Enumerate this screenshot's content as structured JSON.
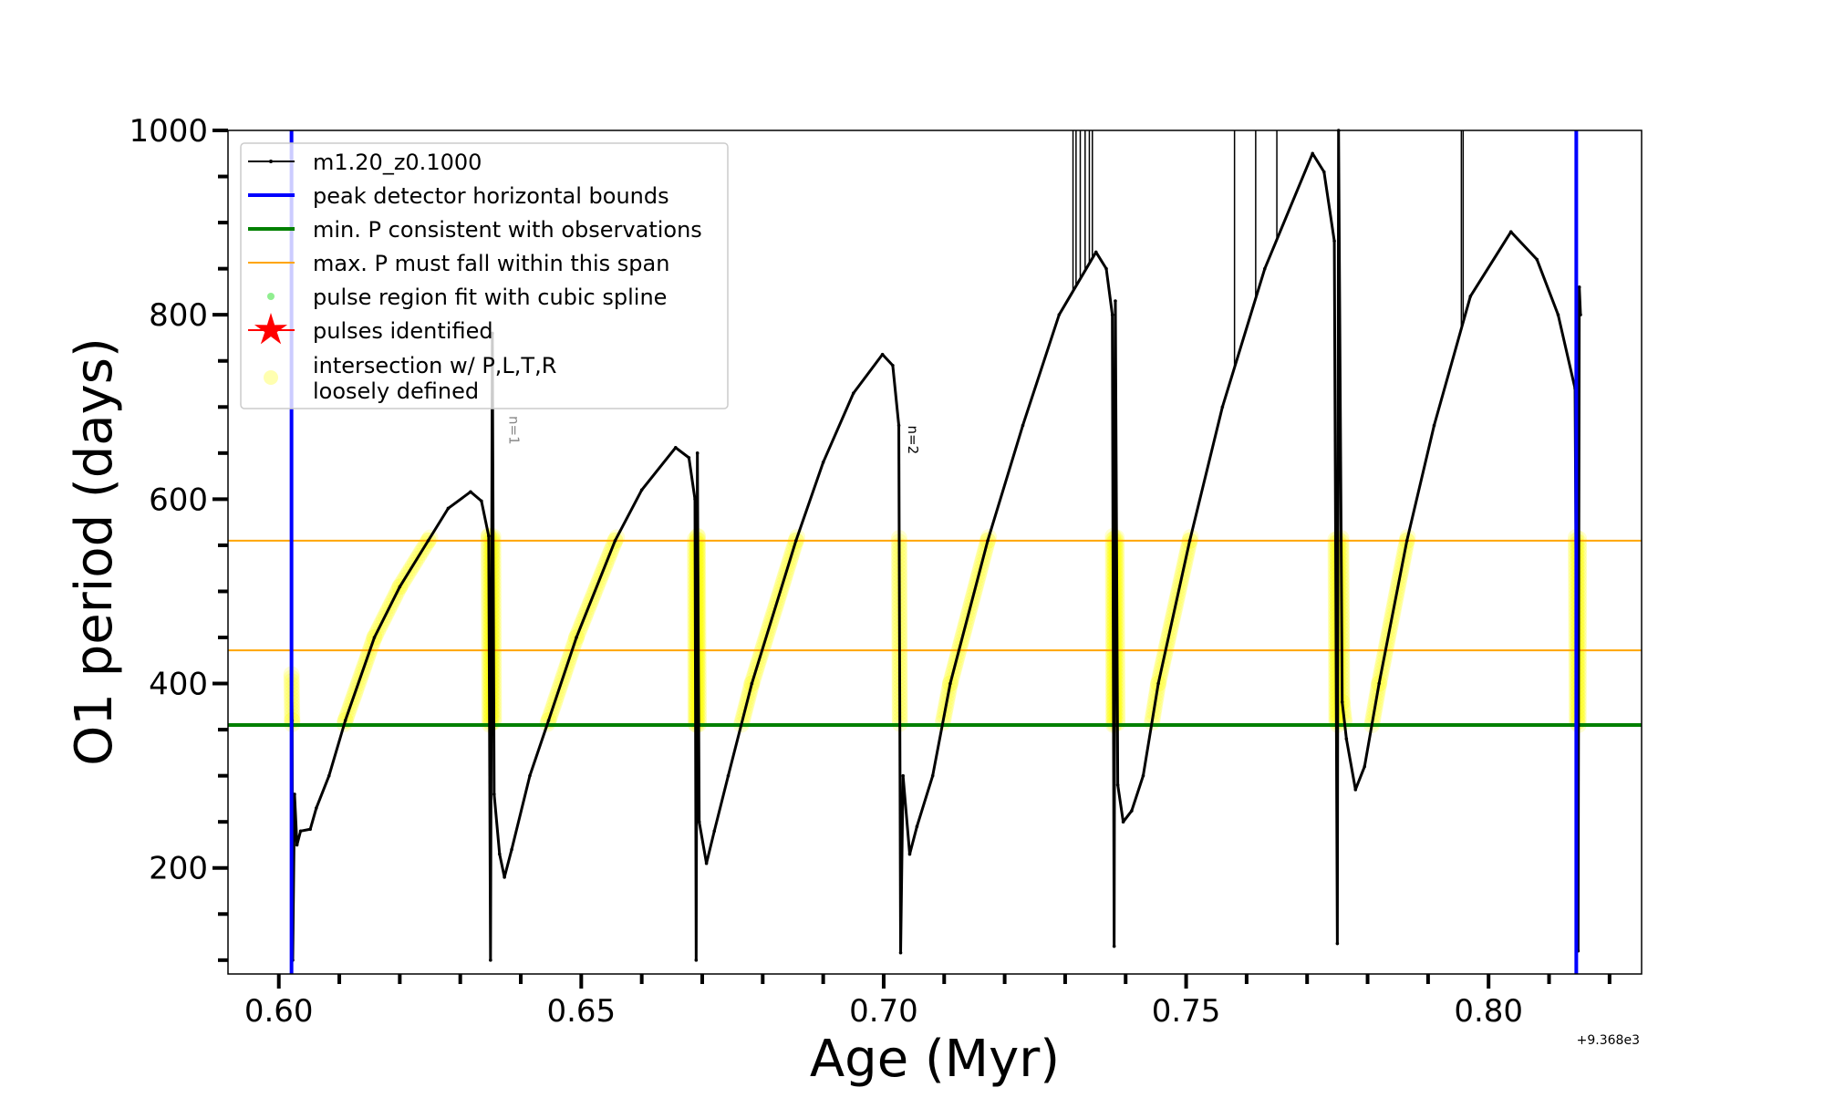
{
  "chart_data": {
    "type": "line",
    "xlabel": "Age (Myr)",
    "ylabel": "O1 period (days)",
    "x_offset_text": "+9.368e3",
    "xlim": [
      0.5916,
      0.8253
    ],
    "ylim": [
      85,
      1000
    ],
    "xticks": [
      "0.60",
      "0.65",
      "0.70",
      "0.75",
      "0.80"
    ],
    "xtick_values": [
      0.6,
      0.65,
      0.7,
      0.75,
      0.8
    ],
    "yticks": [
      "200",
      "400",
      "600",
      "800",
      "1000"
    ],
    "ytick_values": [
      200,
      400,
      600,
      800,
      1000
    ],
    "grid": false,
    "legend_placement": "upper-left",
    "legend": [
      {
        "label": "m1.20_z0.1000",
        "kind": "line-marker",
        "color": "#000000"
      },
      {
        "label": "peak detector horizontal bounds",
        "kind": "line",
        "color": "#0000ff"
      },
      {
        "label": "min. P consistent with observations",
        "kind": "line",
        "color": "#008000"
      },
      {
        "label": "max. P must fall within this span",
        "kind": "thin-line",
        "color": "#ffa500"
      },
      {
        "label": "pulse region fit with cubic spline",
        "kind": "dot",
        "color": "#90ee90"
      },
      {
        "label": "pulses identified",
        "kind": "star",
        "color": "#ff0000"
      },
      {
        "label": "intersection w/ P,L,T,R",
        "label2": "loosely defined",
        "kind": "circle",
        "color": "#ffffb0"
      }
    ],
    "series": [
      {
        "name": "m1.20_z0.1000",
        "color": "#000000",
        "points": [
          [
            0.6021,
            410
          ],
          [
            0.6022,
            360
          ],
          [
            0.6023,
            100
          ],
          [
            0.6026,
            280
          ],
          [
            0.603,
            225
          ],
          [
            0.6036,
            240
          ],
          [
            0.6052,
            242
          ],
          [
            0.6062,
            265
          ],
          [
            0.6083,
            300
          ],
          [
            0.611,
            360
          ],
          [
            0.6158,
            450
          ],
          [
            0.62,
            505
          ],
          [
            0.6247,
            555
          ],
          [
            0.628,
            590
          ],
          [
            0.6317,
            608
          ],
          [
            0.6335,
            598
          ],
          [
            0.6347,
            560
          ],
          [
            0.635,
            100
          ],
          [
            0.6353,
            780
          ],
          [
            0.6356,
            280
          ],
          [
            0.6365,
            215
          ],
          [
            0.6373,
            190
          ],
          [
            0.6385,
            220
          ],
          [
            0.6415,
            300
          ],
          [
            0.6446,
            360
          ],
          [
            0.6492,
            450
          ],
          [
            0.6556,
            555
          ],
          [
            0.66,
            610
          ],
          [
            0.6656,
            656
          ],
          [
            0.6678,
            645
          ],
          [
            0.6688,
            600
          ],
          [
            0.669,
            100
          ],
          [
            0.6692,
            650
          ],
          [
            0.6695,
            250
          ],
          [
            0.6707,
            205
          ],
          [
            0.672,
            240
          ],
          [
            0.6743,
            300
          ],
          [
            0.6782,
            400
          ],
          [
            0.6855,
            555
          ],
          [
            0.69,
            640
          ],
          [
            0.695,
            715
          ],
          [
            0.6998,
            757
          ],
          [
            0.7015,
            745
          ],
          [
            0.7025,
            680
          ],
          [
            0.7028,
            108
          ],
          [
            0.7032,
            300
          ],
          [
            0.7043,
            215
          ],
          [
            0.7055,
            245
          ],
          [
            0.7081,
            300
          ],
          [
            0.711,
            400
          ],
          [
            0.7172,
            555
          ],
          [
            0.723,
            680
          ],
          [
            0.729,
            800
          ],
          [
            0.7351,
            868
          ],
          [
            0.7368,
            850
          ],
          [
            0.7378,
            800
          ],
          [
            0.7381,
            115
          ],
          [
            0.7383,
            815
          ],
          [
            0.7387,
            290
          ],
          [
            0.7396,
            250
          ],
          [
            0.741,
            262
          ],
          [
            0.7429,
            300
          ],
          [
            0.7454,
            400
          ],
          [
            0.7506,
            555
          ],
          [
            0.756,
            700
          ],
          [
            0.763,
            850
          ],
          [
            0.7709,
            975
          ],
          [
            0.7728,
            955
          ],
          [
            0.7745,
            880
          ],
          [
            0.775,
            118
          ],
          [
            0.7752,
            1000
          ],
          [
            0.7758,
            380
          ],
          [
            0.7765,
            340
          ],
          [
            0.778,
            285
          ],
          [
            0.7795,
            310
          ],
          [
            0.7819,
            400
          ],
          [
            0.7865,
            555
          ],
          [
            0.791,
            680
          ],
          [
            0.797,
            820
          ],
          [
            0.8037,
            890
          ],
          [
            0.808,
            860
          ],
          [
            0.8115,
            800
          ],
          [
            0.8143,
            720
          ],
          [
            0.8148,
            110
          ],
          [
            0.815,
            830
          ],
          [
            0.8152,
            800
          ]
        ],
        "vertical_excursions_to_top": [
          0.7313,
          0.7318,
          0.7325,
          0.7333,
          0.734,
          0.7345,
          0.758,
          0.7615,
          0.765,
          0.7955,
          0.7958
        ]
      }
    ],
    "peak_detector_bounds_x": [
      0.6021,
      0.8145
    ],
    "min_P": 355,
    "max_P_span": [
      436,
      555
    ],
    "intersection_band": [
      355,
      560
    ],
    "annotations": [
      {
        "text": "n=1",
        "x": 0.6375,
        "y": 760,
        "faint": true
      },
      {
        "text": "n=2",
        "x": 0.7035,
        "y": 680,
        "faint": false
      }
    ]
  }
}
